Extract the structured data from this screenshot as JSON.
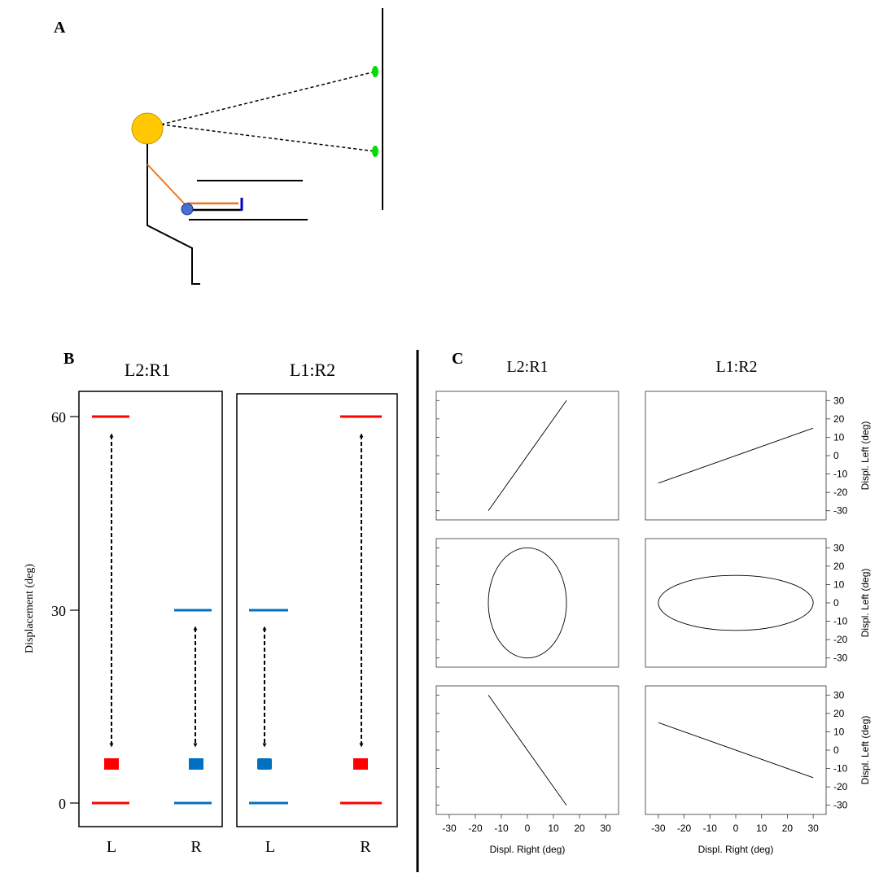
{
  "panel_a": {
    "label": "A",
    "colors": {
      "head": "#FFC800",
      "arm": "#E87722",
      "hand": "#4A6FD0",
      "target": "#00E000",
      "line": "#000000"
    }
  },
  "panel_b": {
    "label": "B",
    "ylabel": "Displacement (deg)",
    "yticks": [
      "60",
      "30",
      "0"
    ],
    "colors": {
      "left_hand": "#FF0000",
      "right_hand": "#0070C0"
    },
    "subpanels": [
      {
        "title": "L2:R1",
        "xticks": [
          "L",
          "R"
        ],
        "left_amplitude": 60,
        "right_amplitude": 30
      },
      {
        "title": "L1:R2",
        "xticks": [
          "L",
          "R"
        ],
        "left_amplitude": 30,
        "right_amplitude": 60
      }
    ]
  },
  "panel_c": {
    "label": "C",
    "col_titles": [
      "L2:R1",
      "L1:R2"
    ],
    "xlabel": "Displ. Right (deg)",
    "ylabel": "Displ. Left (deg)",
    "xticks": [
      "-30",
      "-20",
      "-10",
      "0",
      "10",
      "20",
      "30"
    ],
    "yticks": [
      "30",
      "20",
      "10",
      "0",
      "-10",
      "-20",
      "-30"
    ]
  },
  "chart_data": [
    {
      "type": "line",
      "row": 1,
      "column": "L2:R1",
      "x": [
        -15,
        15
      ],
      "y": [
        -30,
        30
      ],
      "xlim": [
        -35,
        35
      ],
      "ylim": [
        -35,
        35
      ]
    },
    {
      "type": "line",
      "row": 1,
      "column": "L1:R2",
      "x": [
        -30,
        30
      ],
      "y": [
        -15,
        15
      ],
      "xlim": [
        -35,
        35
      ],
      "ylim": [
        -35,
        35
      ]
    },
    {
      "type": "line",
      "row": 2,
      "column": "L2:R1",
      "shape": "ellipse",
      "x_amplitude": 15,
      "y_amplitude": 30,
      "xlim": [
        -35,
        35
      ],
      "ylim": [
        -35,
        35
      ]
    },
    {
      "type": "line",
      "row": 2,
      "column": "L1:R2",
      "shape": "ellipse",
      "x_amplitude": 30,
      "y_amplitude": 15,
      "xlim": [
        -35,
        35
      ],
      "ylim": [
        -35,
        35
      ]
    },
    {
      "type": "line",
      "row": 3,
      "column": "L2:R1",
      "x": [
        -15,
        15
      ],
      "y": [
        30,
        -30
      ],
      "xlim": [
        -35,
        35
      ],
      "ylim": [
        -35,
        35
      ]
    },
    {
      "type": "line",
      "row": 3,
      "column": "L1:R2",
      "x": [
        -30,
        30
      ],
      "y": [
        15,
        -15
      ],
      "xlim": [
        -35,
        35
      ],
      "ylim": [
        -35,
        35
      ]
    }
  ]
}
